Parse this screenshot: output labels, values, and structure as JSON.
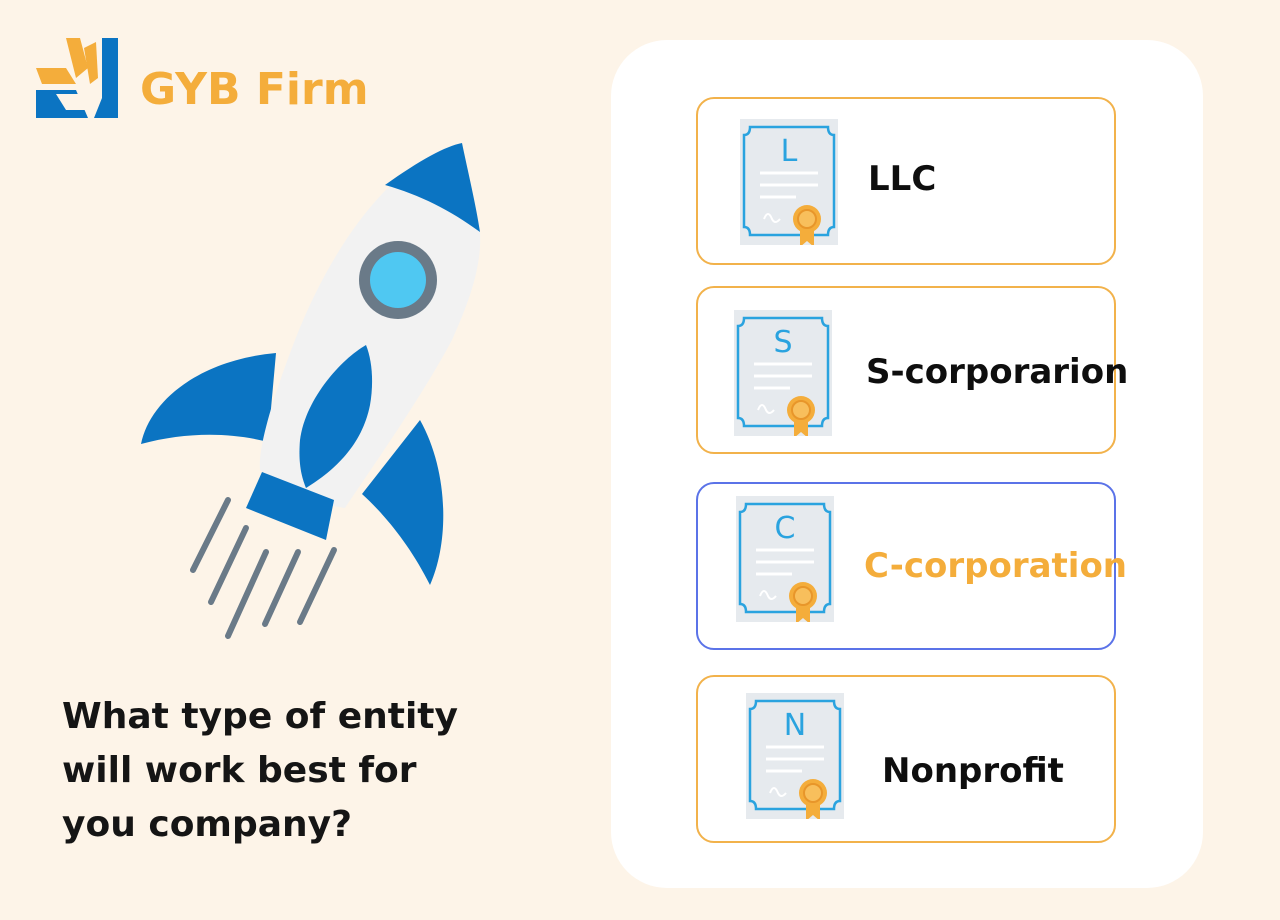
{
  "brand": {
    "name": "GYB Firm",
    "logo_icon": "chevron-burst-logo-icon",
    "colors": {
      "orange": "#f4ad3b",
      "blue": "#0b74c2"
    }
  },
  "hero": {
    "illustration_icon": "rocket-icon",
    "question_lines": [
      "What type of entity",
      "will work best for",
      "you company?"
    ]
  },
  "entity_options": [
    {
      "letter": "L",
      "label": "LLC",
      "icon": "certificate-icon",
      "selected": false
    },
    {
      "letter": "S",
      "label": "S-corporarion",
      "icon": "certificate-icon",
      "selected": false
    },
    {
      "letter": "C",
      "label": "C-corporation",
      "icon": "certificate-icon",
      "selected": true
    },
    {
      "letter": "N",
      "label": "Nonprofit",
      "icon": "certificate-icon",
      "selected": false
    }
  ],
  "colors": {
    "background": "#fdf4e8",
    "card_border": "#f2b24b",
    "selected_border": "#5b73e8",
    "certificate_blue": "#2aa3df",
    "seal_orange": "#f4ad3b"
  }
}
